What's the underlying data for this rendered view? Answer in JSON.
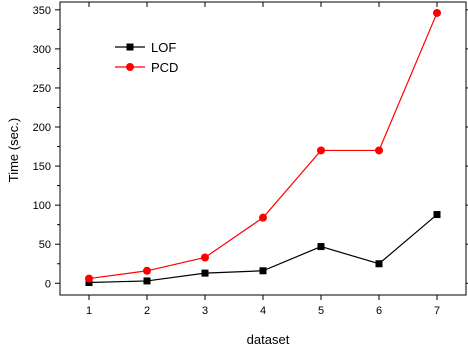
{
  "chart_data": {
    "type": "line",
    "xlabel": "dataset",
    "ylabel": "Time (sec.)",
    "x": [
      1,
      2,
      3,
      4,
      5,
      6,
      7
    ],
    "xlim": [
      0.5,
      7.5
    ],
    "ylim": [
      -15,
      360
    ],
    "yticks": [
      0,
      50,
      100,
      150,
      200,
      250,
      300,
      350
    ],
    "minor_ytick_step": 25,
    "grid": false,
    "legend_position": "top-left",
    "series": [
      {
        "name": "LOF",
        "values": [
          1,
          3,
          13,
          16,
          47,
          25,
          88
        ],
        "color": "#000000",
        "marker": "square"
      },
      {
        "name": "PCD",
        "values": [
          6,
          16,
          33,
          84,
          170,
          170,
          346
        ],
        "color": "#ff0000",
        "marker": "circle"
      }
    ]
  }
}
